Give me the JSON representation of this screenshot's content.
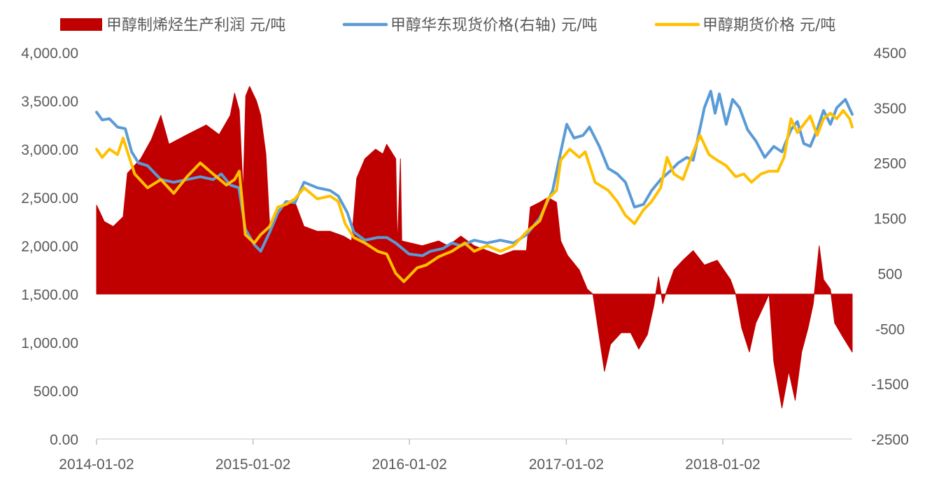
{
  "chart_data": {
    "type": "area+line",
    "legend": [
      {
        "label": "甲醇制烯烃生产利润 元/吨",
        "color": "#C00000",
        "kind": "area"
      },
      {
        "label": "甲醇华东现货价格(右轴) 元/吨",
        "color": "#5B9BD5",
        "kind": "line"
      },
      {
        "label": "甲醇期货价格 元/吨",
        "color": "#FFC000",
        "kind": "line"
      }
    ],
    "legend_position": "top",
    "x_ticks": [
      "2014-01-02",
      "2015-01-02",
      "2016-01-02",
      "2017-01-02",
      "2018-01-02"
    ],
    "x_range": [
      "2014-01-02",
      "2018-10-31"
    ],
    "y_left": {
      "range": [
        0,
        4000
      ],
      "ticks": [
        "0.00",
        "500.00",
        "1,000.00",
        "1,500.00",
        "2,000.00",
        "2,500.00",
        "3,000.00",
        "3,500.00",
        "4,000.00"
      ]
    },
    "y_right": {
      "range": [
        -2500,
        4500
      ],
      "ticks": [
        "-2500",
        "-1500",
        "-500",
        "500",
        "1500",
        "2500",
        "3500",
        "4500"
      ]
    },
    "area_baseline": 1500,
    "series": [
      {
        "name": "甲醇制烯烃生产利润 元/吨",
        "axis": "left",
        "color": "#C00000",
        "points": [
          [
            "2014-01-02",
            2420
          ],
          [
            "2014-01-20",
            2250
          ],
          [
            "2014-02-10",
            2200
          ],
          [
            "2014-03-05",
            2300
          ],
          [
            "2014-03-15",
            2750
          ],
          [
            "2014-04-15",
            2900
          ],
          [
            "2014-05-10",
            3100
          ],
          [
            "2014-06-01",
            3350
          ],
          [
            "2014-06-20",
            3050
          ],
          [
            "2014-08-01",
            3150
          ],
          [
            "2014-09-15",
            3250
          ],
          [
            "2014-10-15",
            3150
          ],
          [
            "2014-11-10",
            3350
          ],
          [
            "2014-11-20",
            3580
          ],
          [
            "2014-12-01",
            3400
          ],
          [
            "2014-12-10",
            2550
          ],
          [
            "2014-12-16",
            3550
          ],
          [
            "2014-12-25",
            3650
          ],
          [
            "2015-01-10",
            3500
          ],
          [
            "2015-01-20",
            3350
          ],
          [
            "2015-02-01",
            2950
          ],
          [
            "2015-02-10",
            2200
          ],
          [
            "2015-02-25",
            2300
          ],
          [
            "2015-03-20",
            2450
          ],
          [
            "2015-04-10",
            2450
          ],
          [
            "2015-05-01",
            2200
          ],
          [
            "2015-06-01",
            2150
          ],
          [
            "2015-07-01",
            2150
          ],
          [
            "2015-08-01",
            2100
          ],
          [
            "2015-08-20",
            2050
          ],
          [
            "2015-09-01",
            2700
          ],
          [
            "2015-09-20",
            2900
          ],
          [
            "2015-10-15",
            3000
          ],
          [
            "2015-11-01",
            2950
          ],
          [
            "2015-11-10",
            3050
          ],
          [
            "2015-12-01",
            2900
          ],
          [
            "2015-12-05",
            2000
          ],
          [
            "2015-12-12",
            2900
          ],
          [
            "2015-12-15",
            2050
          ],
          [
            "2016-02-01",
            2000
          ],
          [
            "2016-03-10",
            2050
          ],
          [
            "2016-04-01",
            2000
          ],
          [
            "2016-05-01",
            2100
          ],
          [
            "2016-06-01",
            2000
          ],
          [
            "2016-07-01",
            1950
          ],
          [
            "2016-08-01",
            1900
          ],
          [
            "2016-09-01",
            1950
          ],
          [
            "2016-10-01",
            1950
          ],
          [
            "2016-10-10",
            2400
          ],
          [
            "2016-11-01",
            2450
          ],
          [
            "2016-11-20",
            2500
          ],
          [
            "2016-12-10",
            2450
          ],
          [
            "2016-12-20",
            2050
          ],
          [
            "2017-01-05",
            1900
          ],
          [
            "2017-02-01",
            1750
          ],
          [
            "2017-02-20",
            1550
          ],
          [
            "2017-03-05",
            1500
          ],
          [
            "2017-03-20",
            1050
          ],
          [
            "2017-04-01",
            700
          ],
          [
            "2017-04-15",
            980
          ],
          [
            "2017-05-10",
            1100
          ],
          [
            "2017-06-01",
            1100
          ],
          [
            "2017-06-20",
            930
          ],
          [
            "2017-07-10",
            1080
          ],
          [
            "2017-07-25",
            1380
          ],
          [
            "2017-08-05",
            1680
          ],
          [
            "2017-08-15",
            1400
          ],
          [
            "2017-08-25",
            1550
          ],
          [
            "2017-09-10",
            1750
          ],
          [
            "2017-10-01",
            1850
          ],
          [
            "2017-10-25",
            1950
          ],
          [
            "2017-11-20",
            1800
          ],
          [
            "2017-12-20",
            1850
          ],
          [
            "2018-01-20",
            1650
          ],
          [
            "2018-02-01",
            1500
          ],
          [
            "2018-02-15",
            1150
          ],
          [
            "2018-03-05",
            900
          ],
          [
            "2018-03-20",
            1200
          ],
          [
            "2018-04-10",
            1400
          ],
          [
            "2018-04-20",
            1500
          ],
          [
            "2018-05-01",
            800
          ],
          [
            "2018-05-20",
            320
          ],
          [
            "2018-06-05",
            700
          ],
          [
            "2018-06-20",
            400
          ],
          [
            "2018-07-05",
            900
          ],
          [
            "2018-07-20",
            1150
          ],
          [
            "2018-08-01",
            1400
          ],
          [
            "2018-08-15",
            2000
          ],
          [
            "2018-08-25",
            1650
          ],
          [
            "2018-09-10",
            1550
          ],
          [
            "2018-09-20",
            1200
          ],
          [
            "2018-10-10",
            1050
          ],
          [
            "2018-10-31",
            900
          ]
        ]
      },
      {
        "name": "甲醇华东现货价格(右轴) 元/吨",
        "axis": "right",
        "color": "#5B9BD5",
        "points": [
          [
            "2014-01-02",
            3420
          ],
          [
            "2014-01-15",
            3280
          ],
          [
            "2014-02-01",
            3300
          ],
          [
            "2014-02-20",
            3150
          ],
          [
            "2014-03-10",
            3120
          ],
          [
            "2014-03-25",
            2700
          ],
          [
            "2014-04-10",
            2500
          ],
          [
            "2014-05-01",
            2450
          ],
          [
            "2014-06-01",
            2200
          ],
          [
            "2014-07-01",
            2150
          ],
          [
            "2014-08-01",
            2200
          ],
          [
            "2014-09-01",
            2250
          ],
          [
            "2014-10-01",
            2200
          ],
          [
            "2014-10-20",
            2300
          ],
          [
            "2014-11-10",
            2100
          ],
          [
            "2014-11-30",
            2050
          ],
          [
            "2014-12-15",
            1300
          ],
          [
            "2015-01-05",
            1020
          ],
          [
            "2015-01-20",
            900
          ],
          [
            "2015-02-10",
            1250
          ],
          [
            "2015-03-01",
            1600
          ],
          [
            "2015-03-20",
            1800
          ],
          [
            "2015-04-10",
            1780
          ],
          [
            "2015-05-01",
            2150
          ],
          [
            "2015-06-01",
            2050
          ],
          [
            "2015-07-01",
            2000
          ],
          [
            "2015-07-20",
            1900
          ],
          [
            "2015-08-10",
            1600
          ],
          [
            "2015-08-25",
            1250
          ],
          [
            "2015-09-20",
            1100
          ],
          [
            "2015-10-20",
            1150
          ],
          [
            "2015-11-10",
            1150
          ],
          [
            "2015-12-01",
            1050
          ],
          [
            "2016-01-01",
            850
          ],
          [
            "2016-02-01",
            820
          ],
          [
            "2016-02-20",
            900
          ],
          [
            "2016-03-20",
            950
          ],
          [
            "2016-04-10",
            1050
          ],
          [
            "2016-05-01",
            1000
          ],
          [
            "2016-06-01",
            1100
          ],
          [
            "2016-07-01",
            1050
          ],
          [
            "2016-08-01",
            1100
          ],
          [
            "2016-09-01",
            1050
          ],
          [
            "2016-10-01",
            1200
          ],
          [
            "2016-11-01",
            1500
          ],
          [
            "2016-12-01",
            2000
          ],
          [
            "2016-12-20",
            2700
          ],
          [
            "2017-01-03",
            3200
          ],
          [
            "2017-01-20",
            2950
          ],
          [
            "2017-02-10",
            3000
          ],
          [
            "2017-02-25",
            3150
          ],
          [
            "2017-03-20",
            2800
          ],
          [
            "2017-04-10",
            2400
          ],
          [
            "2017-05-01",
            2300
          ],
          [
            "2017-05-20",
            2150
          ],
          [
            "2017-06-10",
            1700
          ],
          [
            "2017-07-01",
            1750
          ],
          [
            "2017-07-20",
            2000
          ],
          [
            "2017-08-10",
            2200
          ],
          [
            "2017-09-01",
            2350
          ],
          [
            "2017-09-20",
            2500
          ],
          [
            "2017-10-10",
            2600
          ],
          [
            "2017-10-25",
            2550
          ],
          [
            "2017-11-05",
            2950
          ],
          [
            "2017-11-20",
            3500
          ],
          [
            "2017-12-05",
            3800
          ],
          [
            "2017-12-15",
            3400
          ],
          [
            "2017-12-25",
            3750
          ],
          [
            "2018-01-10",
            3200
          ],
          [
            "2018-01-25",
            3650
          ],
          [
            "2018-02-10",
            3500
          ],
          [
            "2018-03-01",
            3100
          ],
          [
            "2018-03-20",
            2900
          ],
          [
            "2018-04-10",
            2600
          ],
          [
            "2018-05-01",
            2800
          ],
          [
            "2018-05-20",
            2700
          ],
          [
            "2018-06-10",
            3100
          ],
          [
            "2018-06-25",
            3250
          ],
          [
            "2018-07-10",
            2850
          ],
          [
            "2018-07-25",
            2800
          ],
          [
            "2018-08-10",
            3100
          ],
          [
            "2018-08-25",
            3450
          ],
          [
            "2018-09-10",
            3200
          ],
          [
            "2018-09-25",
            3500
          ],
          [
            "2018-10-15",
            3650
          ],
          [
            "2018-10-31",
            3380
          ]
        ]
      },
      {
        "name": "甲醇期货价格 元/吨",
        "axis": "right",
        "color": "#FFC000",
        "points": [
          [
            "2014-01-02",
            2750
          ],
          [
            "2014-01-15",
            2600
          ],
          [
            "2014-02-01",
            2750
          ],
          [
            "2014-02-20",
            2650
          ],
          [
            "2014-03-05",
            2950
          ],
          [
            "2014-03-15",
            2700
          ],
          [
            "2014-04-01",
            2300
          ],
          [
            "2014-05-01",
            2050
          ],
          [
            "2014-06-01",
            2200
          ],
          [
            "2014-07-01",
            1950
          ],
          [
            "2014-08-01",
            2250
          ],
          [
            "2014-09-01",
            2500
          ],
          [
            "2014-10-01",
            2300
          ],
          [
            "2014-11-01",
            2100
          ],
          [
            "2014-11-20",
            2200
          ],
          [
            "2014-12-01",
            2350
          ],
          [
            "2014-12-15",
            1200
          ],
          [
            "2015-01-05",
            1050
          ],
          [
            "2015-01-20",
            1200
          ],
          [
            "2015-02-10",
            1350
          ],
          [
            "2015-03-01",
            1700
          ],
          [
            "2015-03-20",
            1750
          ],
          [
            "2015-04-10",
            1850
          ],
          [
            "2015-05-01",
            2050
          ],
          [
            "2015-06-01",
            1850
          ],
          [
            "2015-07-01",
            1900
          ],
          [
            "2015-07-20",
            1800
          ],
          [
            "2015-08-05",
            1400
          ],
          [
            "2015-08-25",
            1150
          ],
          [
            "2015-09-20",
            1050
          ],
          [
            "2015-10-20",
            900
          ],
          [
            "2015-11-10",
            850
          ],
          [
            "2015-12-01",
            500
          ],
          [
            "2015-12-20",
            350
          ],
          [
            "2016-01-20",
            600
          ],
          [
            "2016-02-10",
            650
          ],
          [
            "2016-03-10",
            800
          ],
          [
            "2016-04-10",
            900
          ],
          [
            "2016-05-10",
            1050
          ],
          [
            "2016-06-01",
            900
          ],
          [
            "2016-07-01",
            1000
          ],
          [
            "2016-08-01",
            900
          ],
          [
            "2016-09-01",
            1000
          ],
          [
            "2016-10-01",
            1250
          ],
          [
            "2016-11-01",
            1450
          ],
          [
            "2016-11-20",
            1850
          ],
          [
            "2016-12-10",
            2000
          ],
          [
            "2016-12-20",
            2550
          ],
          [
            "2017-01-10",
            2750
          ],
          [
            "2017-02-01",
            2600
          ],
          [
            "2017-02-15",
            2700
          ],
          [
            "2017-03-10",
            2150
          ],
          [
            "2017-04-10",
            2000
          ],
          [
            "2017-05-01",
            1800
          ],
          [
            "2017-05-20",
            1550
          ],
          [
            "2017-06-10",
            1400
          ],
          [
            "2017-07-01",
            1650
          ],
          [
            "2017-07-20",
            1800
          ],
          [
            "2017-08-10",
            2050
          ],
          [
            "2017-08-25",
            2600
          ],
          [
            "2017-09-10",
            2300
          ],
          [
            "2017-10-01",
            2200
          ],
          [
            "2017-10-20",
            2600
          ],
          [
            "2017-11-10",
            3000
          ],
          [
            "2017-12-01",
            2650
          ],
          [
            "2017-12-20",
            2550
          ],
          [
            "2018-01-10",
            2450
          ],
          [
            "2018-02-01",
            2250
          ],
          [
            "2018-02-20",
            2300
          ],
          [
            "2018-03-10",
            2150
          ],
          [
            "2018-04-01",
            2300
          ],
          [
            "2018-04-20",
            2350
          ],
          [
            "2018-05-10",
            2350
          ],
          [
            "2018-05-25",
            2600
          ],
          [
            "2018-06-10",
            3300
          ],
          [
            "2018-06-25",
            3050
          ],
          [
            "2018-07-10",
            3200
          ],
          [
            "2018-07-25",
            3350
          ],
          [
            "2018-08-10",
            3000
          ],
          [
            "2018-08-25",
            3300
          ],
          [
            "2018-09-10",
            3400
          ],
          [
            "2018-09-25",
            3300
          ],
          [
            "2018-10-10",
            3450
          ],
          [
            "2018-10-25",
            3300
          ],
          [
            "2018-10-31",
            3150
          ]
        ]
      }
    ]
  }
}
